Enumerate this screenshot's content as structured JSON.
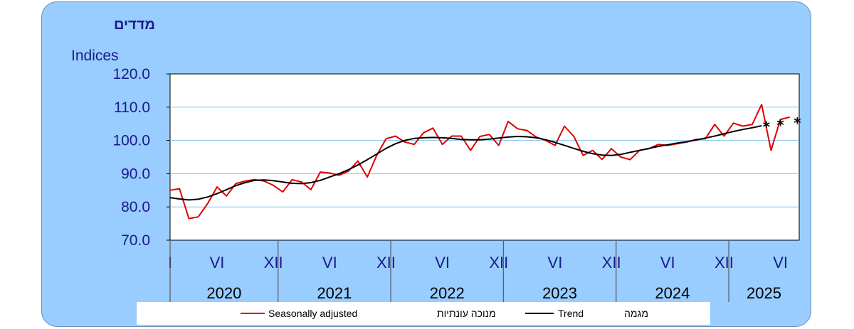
{
  "header": {
    "hebrew_title": "מדדים",
    "ylabel": "Indices"
  },
  "legend": {
    "items": [
      {
        "name_en": "Seasonally adjusted",
        "name_he": "מנוכה עונתיות",
        "color": "#e00000"
      },
      {
        "name_en": "Trend",
        "name_he": "מגמה",
        "color": "#000000"
      }
    ]
  },
  "chart_data": {
    "type": "line",
    "ylim": [
      70,
      120
    ],
    "yticks": [
      "70.0",
      "80.0",
      "90.0",
      "100.0",
      "110.0",
      "120.0"
    ],
    "xlim": [
      0,
      67
    ],
    "month_ticks": [
      {
        "pos": 0,
        "label": "I"
      },
      {
        "pos": 5,
        "label": "VI"
      },
      {
        "pos": 11,
        "label": "XII"
      },
      {
        "pos": 17,
        "label": "VI"
      },
      {
        "pos": 23,
        "label": "XII"
      },
      {
        "pos": 29,
        "label": "VI"
      },
      {
        "pos": 35,
        "label": "XII"
      },
      {
        "pos": 41,
        "label": "VI"
      },
      {
        "pos": 47,
        "label": "XII"
      },
      {
        "pos": 53,
        "label": "VI"
      },
      {
        "pos": 59,
        "label": "XII"
      },
      {
        "pos": 65,
        "label": "VI"
      }
    ],
    "years": [
      {
        "label": "2020",
        "start": 0,
        "end": 11.5
      },
      {
        "label": "2021",
        "start": 11.5,
        "end": 23.5
      },
      {
        "label": "2022",
        "start": 23.5,
        "end": 35.5
      },
      {
        "label": "2023",
        "start": 35.5,
        "end": 47.5
      },
      {
        "label": "2024",
        "start": 47.5,
        "end": 59.5
      },
      {
        "label": "2025",
        "start": 59.5,
        "end": 67
      }
    ],
    "grid": "horizontal",
    "series": [
      {
        "name": "Seasonally adjusted",
        "color": "#e00000",
        "values": [
          85.0,
          85.5,
          76.5,
          77.0,
          81.0,
          86.0,
          83.3,
          87.0,
          87.8,
          88.2,
          87.8,
          86.5,
          84.5,
          88.2,
          87.5,
          85.2,
          90.5,
          90.2,
          89.5,
          90.8,
          93.8,
          89.0,
          95.5,
          100.5,
          101.3,
          99.5,
          98.8,
          102.3,
          103.7,
          98.8,
          101.3,
          101.3,
          97.0,
          101.2,
          101.8,
          98.5,
          105.7,
          103.5,
          103.0,
          101.0,
          100.0,
          98.5,
          104.3,
          101.2,
          95.5,
          97.0,
          94.3,
          97.5,
          95.0,
          94.2,
          97.0,
          97.5,
          98.8,
          98.5,
          99.0,
          99.5,
          100.3,
          100.5,
          104.8,
          101.3,
          105.2,
          104.3,
          104.8,
          110.8,
          97.0,
          106.3,
          107.0
        ]
      },
      {
        "name": "Trend",
        "color": "#000000",
        "values": [
          82.8,
          82.4,
          82.1,
          82.3,
          83.0,
          84.0,
          85.2,
          86.4,
          87.3,
          88.0,
          88.1,
          87.9,
          87.5,
          87.1,
          87.0,
          87.3,
          88.0,
          89.0,
          90.0,
          91.2,
          92.6,
          94.2,
          95.9,
          97.6,
          99.0,
          100.0,
          100.6,
          100.8,
          100.9,
          100.8,
          100.6,
          100.3,
          100.2,
          100.2,
          100.4,
          100.7,
          101.0,
          101.2,
          101.1,
          100.8,
          100.2,
          99.4,
          98.5,
          97.6,
          96.7,
          96.0,
          95.6,
          95.5,
          95.8,
          96.4,
          97.0,
          97.6,
          98.2,
          98.7,
          99.2,
          99.6,
          100.1,
          100.7,
          101.3,
          102.0,
          102.7,
          103.3,
          103.8,
          104.4
        ],
        "provisional_marks": [
          {
            "pos": 63.5,
            "value": 105.3
          },
          {
            "pos": 65,
            "value": 105.8
          },
          {
            "pos": 66.8,
            "value": 106.4
          }
        ]
      }
    ]
  }
}
